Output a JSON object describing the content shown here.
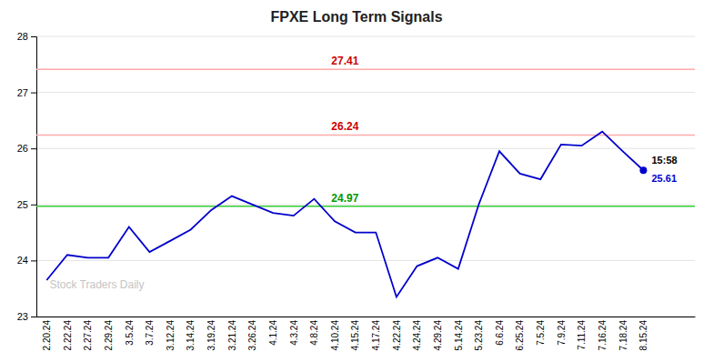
{
  "chart_data": {
    "type": "line",
    "title": "FPXE Long Term Signals",
    "categories": [
      "2.20.24",
      "2.22.24",
      "2.27.24",
      "2.29.24",
      "3.5.24",
      "3.7.24",
      "3.12.24",
      "3.14.24",
      "3.19.24",
      "3.21.24",
      "3.26.24",
      "4.1.24",
      "4.3.24",
      "4.8.24",
      "4.10.24",
      "4.15.24",
      "4.17.24",
      "4.22.24",
      "4.24.24",
      "4.29.24",
      "5.14.24",
      "5.23.24",
      "6.6.24",
      "6.25.24",
      "7.5.24",
      "7.9.24",
      "7.11.24",
      "7.16.24",
      "7.18.24",
      "8.15.24"
    ],
    "values": [
      23.65,
      24.1,
      24.05,
      24.05,
      24.6,
      24.15,
      24.35,
      24.55,
      24.9,
      25.15,
      25.0,
      24.85,
      24.8,
      25.1,
      24.7,
      24.5,
      24.5,
      23.35,
      23.9,
      24.05,
      23.85,
      25.0,
      25.95,
      25.55,
      25.45,
      26.07,
      26.05,
      26.3,
      25.95,
      25.61
    ],
    "color": "#0000cc",
    "ylim": [
      23.0,
      28.0
    ],
    "yticks": [
      23,
      24,
      25,
      26,
      27,
      28
    ],
    "grid": true,
    "hlines": [
      {
        "value": 27.41,
        "label": "27.41",
        "color": "#ffaaaa",
        "label_color": "#cc0000"
      },
      {
        "value": 26.24,
        "label": "26.24",
        "color": "#ffaaaa",
        "label_color": "#cc0000"
      },
      {
        "value": 24.97,
        "label": "24.97",
        "color": "#33cc33",
        "label_color": "#009900"
      }
    ],
    "annotations": [
      {
        "text": "15:58",
        "color": "#000000"
      },
      {
        "text": "25.61",
        "color": "#0000cc"
      }
    ],
    "watermark": "Stock Traders Daily"
  }
}
